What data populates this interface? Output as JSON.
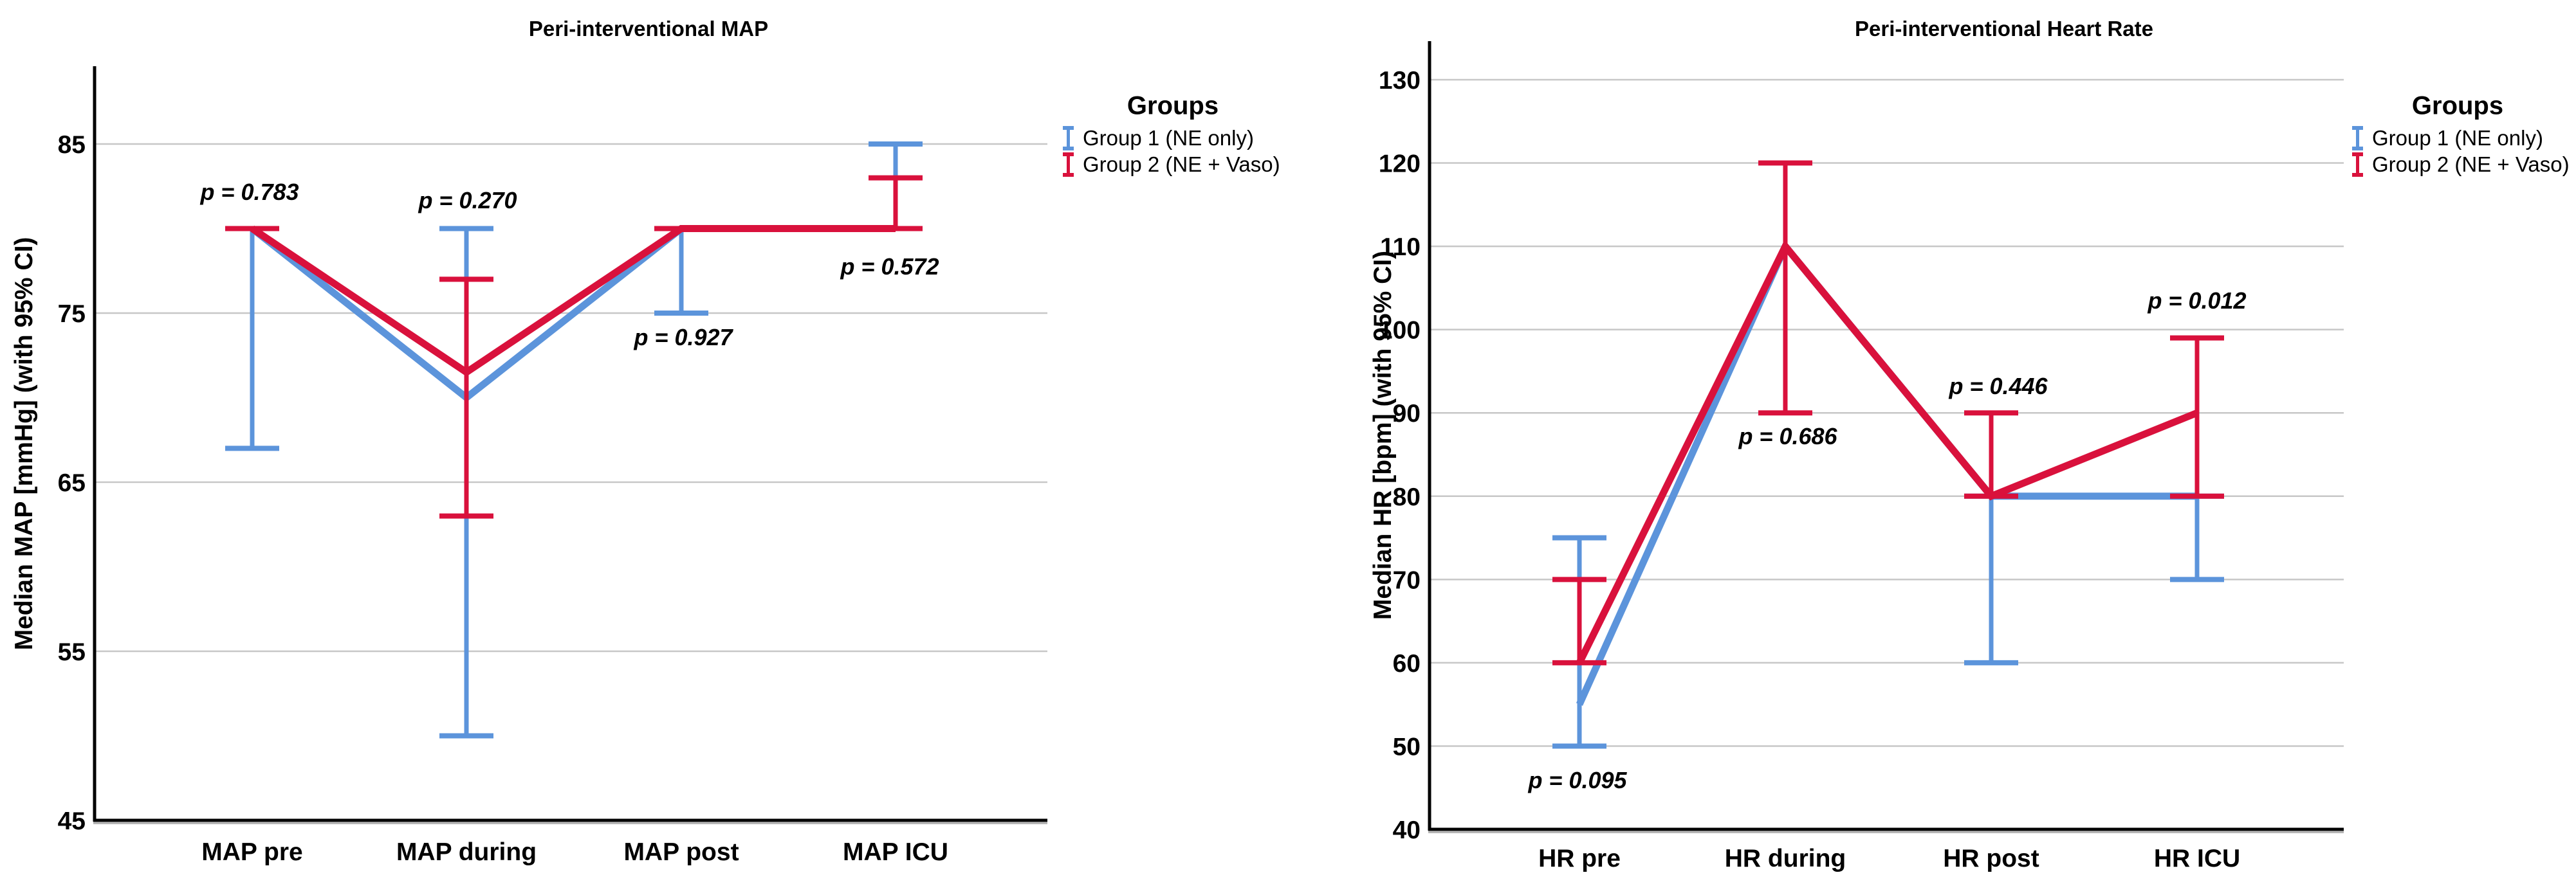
{
  "page": {
    "background": "#FFFFFF"
  },
  "chart_data": {
    "type": "line",
    "figure": "Two error-bar line charts of medians with 95% confidence intervals, legend at right of each panel",
    "colors": {
      "group1": "#5C94DB",
      "group2": "#D9113C",
      "gridline": "#C7C7C7",
      "axis": "#000000",
      "axis_shadow": "#B5B5B5",
      "text": "#000000",
      "background": "#FFFFFF"
    },
    "charts": [
      {
        "id": "map",
        "title": "Peri-interventional MAP",
        "ylabel": "Median MAP [mmHg] (with 95% CI)",
        "xlabel": "",
        "categories": [
          "MAP pre",
          "MAP during",
          "MAP post",
          "MAP ICU"
        ],
        "yticks": [
          45,
          55,
          65,
          75,
          85
        ],
        "ylim": [
          45,
          89.6
        ],
        "grid": true,
        "legend_title": "Groups",
        "legend_position": "right",
        "series": [
          {
            "name": "Group 1 (NE only)",
            "color_key": "group1",
            "medians": [
              80,
              70,
              80,
              80
            ],
            "ci_low": [
              67,
              50,
              75,
              80
            ],
            "ci_high": [
              80,
              80,
              80,
              85
            ]
          },
          {
            "name": "Group 2 (NE + Vaso)",
            "color_key": "group2",
            "medians": [
              80,
              71.5,
              80,
              80
            ],
            "ci_low": [
              80,
              63,
              80,
              80
            ],
            "ci_high": [
              80,
              77,
              80,
              83
            ]
          }
        ],
        "p_values": [
          "p = 0.783",
          "p = 0.270",
          "p = 0.927",
          "p = 0.572"
        ]
      },
      {
        "id": "hr",
        "title": "Peri-interventional Heart Rate",
        "ylabel": "Median HR [bpm] (with 95% CI)",
        "xlabel": "",
        "categories": [
          "HR pre",
          "HR during",
          "HR post",
          "HR ICU"
        ],
        "yticks": [
          40,
          50,
          60,
          70,
          80,
          90,
          100,
          110,
          120,
          130
        ],
        "ylim": [
          40,
          134.6
        ],
        "grid": true,
        "legend_title": "Groups",
        "legend_position": "right",
        "series": [
          {
            "name": "Group 1 (NE only)",
            "color_key": "group1",
            "medians": [
              55,
              110,
              80,
              80
            ],
            "ci_low": [
              50,
              null,
              60,
              70
            ],
            "ci_high": [
              75,
              null,
              80,
              80
            ]
          },
          {
            "name": "Group 2 (NE + Vaso)",
            "color_key": "group2",
            "medians": [
              60,
              110,
              80,
              90
            ],
            "ci_low": [
              60,
              90,
              80,
              80
            ],
            "ci_high": [
              70,
              120,
              90,
              99
            ]
          }
        ],
        "p_values": [
          "p = 0.095",
          "p = 0.686",
          "p = 0.446",
          "p = 0.012"
        ]
      }
    ]
  }
}
